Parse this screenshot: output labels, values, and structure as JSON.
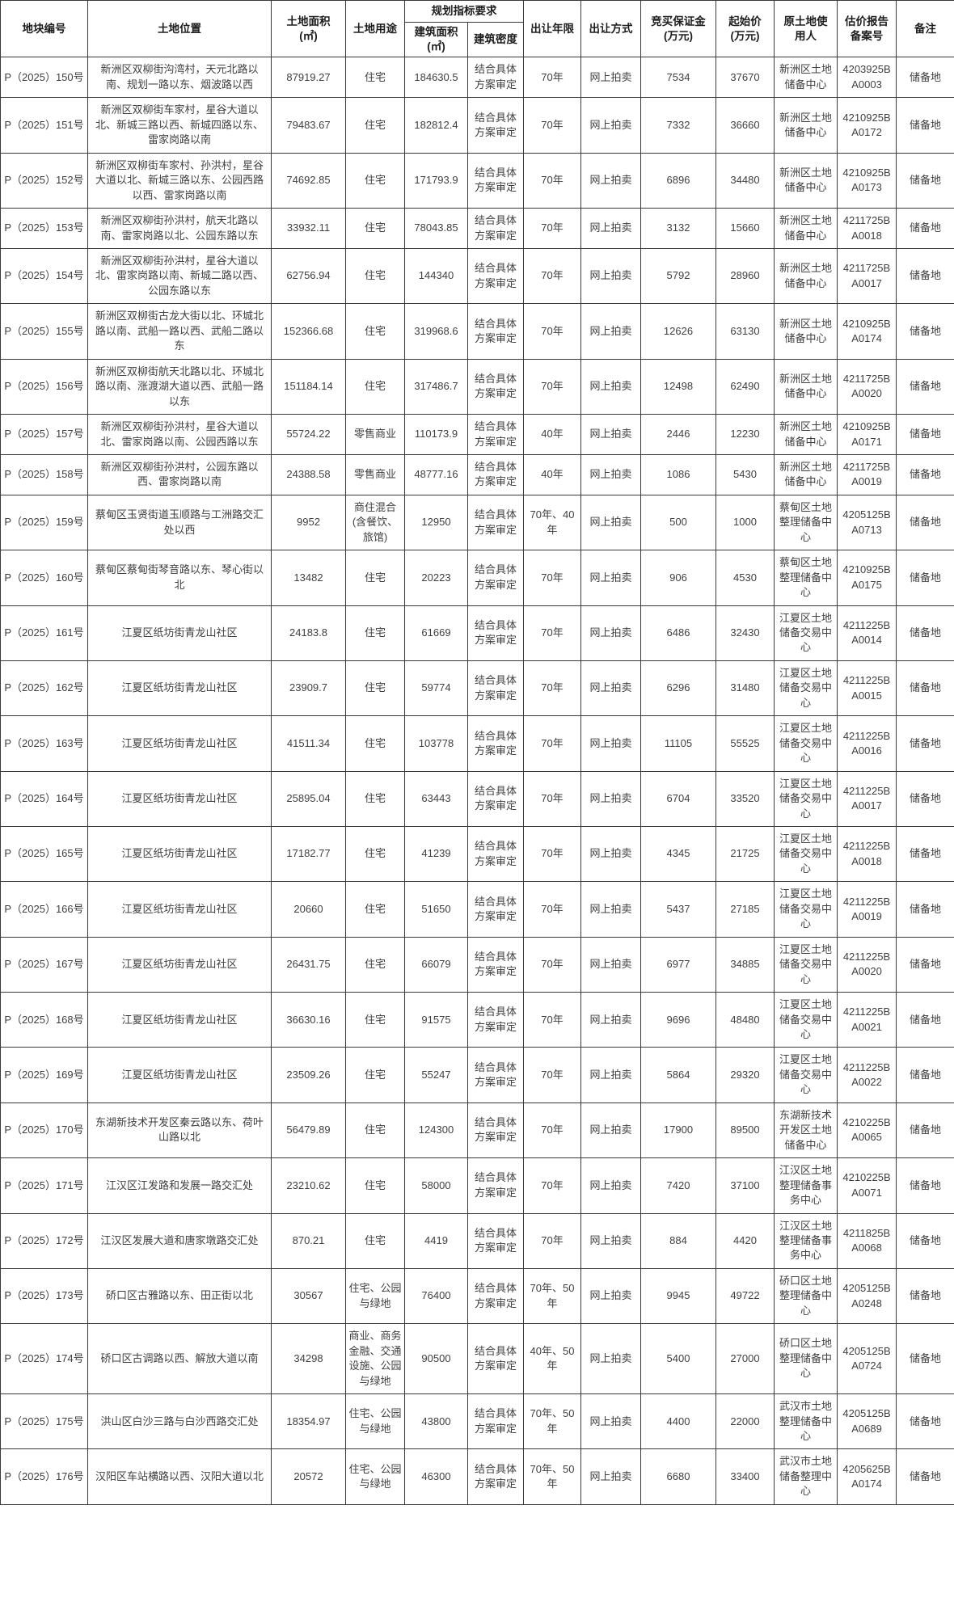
{
  "table": {
    "header": {
      "parcel_id": "地块编号",
      "location": "土地位置",
      "land_area": "土地面积\n(㎡)",
      "land_use": "土地用途",
      "plan_group": "规划指标要求",
      "build_area": "建筑面积\n(㎡)",
      "density": "建筑密度",
      "years": "出让年限",
      "method": "出让方式",
      "deposit": "竞买保证金\n(万元)",
      "start_price": "起始价\n(万元)",
      "original_user": "原土地使\n用人",
      "record_no": "估价报告\n备案号",
      "note": "备注"
    },
    "rows": [
      {
        "id": "P（2025）150号",
        "location": "新洲区双柳街沟湾村，天元北路以南、规划一路以东、烟波路以西",
        "land_area": "87919.27",
        "land_use": "住宅",
        "build_area": "184630.5",
        "density": "结合具体方案审定",
        "years": "70年",
        "method": "网上拍卖",
        "deposit": "7534",
        "start_price": "37670",
        "original_user": "新洲区土地储备中心",
        "record_no": "4203925BA0003",
        "note": "储备地"
      },
      {
        "id": "P（2025）151号",
        "location": "新洲区双柳街车家村，星谷大道以北、新城三路以西、新城四路以东、雷家岗路以南",
        "land_area": "79483.67",
        "land_use": "住宅",
        "build_area": "182812.4",
        "density": "结合具体方案审定",
        "years": "70年",
        "method": "网上拍卖",
        "deposit": "7332",
        "start_price": "36660",
        "original_user": "新洲区土地储备中心",
        "record_no": "4210925BA0172",
        "note": "储备地"
      },
      {
        "id": "P（2025）152号",
        "location": "新洲区双柳街车家村、孙洪村，星谷大道以北、新城三路以东、公园西路以西、雷家岗路以南",
        "land_area": "74692.85",
        "land_use": "住宅",
        "build_area": "171793.9",
        "density": "结合具体方案审定",
        "years": "70年",
        "method": "网上拍卖",
        "deposit": "6896",
        "start_price": "34480",
        "original_user": "新洲区土地储备中心",
        "record_no": "4210925BA0173",
        "note": "储备地"
      },
      {
        "id": "P（2025）153号",
        "location": "新洲区双柳街孙洪村，航天北路以南、雷家岗路以北、公园东路以东",
        "land_area": "33932.11",
        "land_use": "住宅",
        "build_area": "78043.85",
        "density": "结合具体方案审定",
        "years": "70年",
        "method": "网上拍卖",
        "deposit": "3132",
        "start_price": "15660",
        "original_user": "新洲区土地储备中心",
        "record_no": "4211725BA0018",
        "note": "储备地"
      },
      {
        "id": "P（2025）154号",
        "location": "新洲区双柳街孙洪村，星谷大道以北、雷家岗路以南、新城二路以西、公园东路以东",
        "land_area": "62756.94",
        "land_use": "住宅",
        "build_area": "144340",
        "density": "结合具体方案审定",
        "years": "70年",
        "method": "网上拍卖",
        "deposit": "5792",
        "start_price": "28960",
        "original_user": "新洲区土地储备中心",
        "record_no": "4211725BA0017",
        "note": "储备地"
      },
      {
        "id": "P（2025）155号",
        "location": "新洲区双柳街古龙大街以北、环城北路以南、武船一路以西、武船二路以东",
        "land_area": "152366.68",
        "land_use": "住宅",
        "build_area": "319968.6",
        "density": "结合具体方案审定",
        "years": "70年",
        "method": "网上拍卖",
        "deposit": "12626",
        "start_price": "63130",
        "original_user": "新洲区土地储备中心",
        "record_no": "4210925BA0174",
        "note": "储备地"
      },
      {
        "id": "P（2025）156号",
        "location": "新洲区双柳街航天北路以北、环城北路以南、涨渡湖大道以西、武船一路以东",
        "land_area": "151184.14",
        "land_use": "住宅",
        "build_area": "317486.7",
        "density": "结合具体方案审定",
        "years": "70年",
        "method": "网上拍卖",
        "deposit": "12498",
        "start_price": "62490",
        "original_user": "新洲区土地储备中心",
        "record_no": "4211725BA0020",
        "note": "储备地"
      },
      {
        "id": "P（2025）157号",
        "location": "新洲区双柳街孙洪村，星谷大道以北、雷家岗路以南、公园西路以东",
        "land_area": "55724.22",
        "land_use": "零售商业",
        "build_area": "110173.9",
        "density": "结合具体方案审定",
        "years": "40年",
        "method": "网上拍卖",
        "deposit": "2446",
        "start_price": "12230",
        "original_user": "新洲区土地储备中心",
        "record_no": "4210925BA0171",
        "note": "储备地"
      },
      {
        "id": "P（2025）158号",
        "location": "新洲区双柳街孙洪村，公园东路以西、雷家岗路以南",
        "land_area": "24388.58",
        "land_use": "零售商业",
        "build_area": "48777.16",
        "density": "结合具体方案审定",
        "years": "40年",
        "method": "网上拍卖",
        "deposit": "1086",
        "start_price": "5430",
        "original_user": "新洲区土地储备中心",
        "record_no": "4211725BA0019",
        "note": "储备地"
      },
      {
        "id": "P（2025）159号",
        "location": "蔡甸区玉贤街道玉顺路与工洲路交汇处以西",
        "land_area": "9952",
        "land_use": "商住混合(含餐饮、旅馆)",
        "build_area": "12950",
        "density": "结合具体方案审定",
        "years": "70年、40年",
        "method": "网上拍卖",
        "deposit": "500",
        "start_price": "1000",
        "original_user": "蔡甸区土地整理储备中心",
        "record_no": "4205125BA0713",
        "note": "储备地"
      },
      {
        "id": "P（2025）160号",
        "location": "蔡甸区蔡甸街琴音路以东、琴心街以北",
        "land_area": "13482",
        "land_use": "住宅",
        "build_area": "20223",
        "density": "结合具体方案审定",
        "years": "70年",
        "method": "网上拍卖",
        "deposit": "906",
        "start_price": "4530",
        "original_user": "蔡甸区土地整理储备中心",
        "record_no": "4210925BA0175",
        "note": "储备地"
      },
      {
        "id": "P（2025）161号",
        "location": "江夏区纸坊街青龙山社区",
        "land_area": "24183.8",
        "land_use": "住宅",
        "build_area": "61669",
        "density": "结合具体方案审定",
        "years": "70年",
        "method": "网上拍卖",
        "deposit": "6486",
        "start_price": "32430",
        "original_user": "江夏区土地储备交易中心",
        "record_no": "4211225BA0014",
        "note": "储备地"
      },
      {
        "id": "P（2025）162号",
        "location": "江夏区纸坊街青龙山社区",
        "land_area": "23909.7",
        "land_use": "住宅",
        "build_area": "59774",
        "density": "结合具体方案审定",
        "years": "70年",
        "method": "网上拍卖",
        "deposit": "6296",
        "start_price": "31480",
        "original_user": "江夏区土地储备交易中心",
        "record_no": "4211225BA0015",
        "note": "储备地"
      },
      {
        "id": "P（2025）163号",
        "location": "江夏区纸坊街青龙山社区",
        "land_area": "41511.34",
        "land_use": "住宅",
        "build_area": "103778",
        "density": "结合具体方案审定",
        "years": "70年",
        "method": "网上拍卖",
        "deposit": "11105",
        "start_price": "55525",
        "original_user": "江夏区土地储备交易中心",
        "record_no": "4211225BA0016",
        "note": "储备地"
      },
      {
        "id": "P（2025）164号",
        "location": "江夏区纸坊街青龙山社区",
        "land_area": "25895.04",
        "land_use": "住宅",
        "build_area": "63443",
        "density": "结合具体方案审定",
        "years": "70年",
        "method": "网上拍卖",
        "deposit": "6704",
        "start_price": "33520",
        "original_user": "江夏区土地储备交易中心",
        "record_no": "4211225BA0017",
        "note": "储备地"
      },
      {
        "id": "P（2025）165号",
        "location": "江夏区纸坊街青龙山社区",
        "land_area": "17182.77",
        "land_use": "住宅",
        "build_area": "41239",
        "density": "结合具体方案审定",
        "years": "70年",
        "method": "网上拍卖",
        "deposit": "4345",
        "start_price": "21725",
        "original_user": "江夏区土地储备交易中心",
        "record_no": "4211225BA0018",
        "note": "储备地"
      },
      {
        "id": "P（2025）166号",
        "location": "江夏区纸坊街青龙山社区",
        "land_area": "20660",
        "land_use": "住宅",
        "build_area": "51650",
        "density": "结合具体方案审定",
        "years": "70年",
        "method": "网上拍卖",
        "deposit": "5437",
        "start_price": "27185",
        "original_user": "江夏区土地储备交易中心",
        "record_no": "4211225BA0019",
        "note": "储备地"
      },
      {
        "id": "P（2025）167号",
        "location": "江夏区纸坊街青龙山社区",
        "land_area": "26431.75",
        "land_use": "住宅",
        "build_area": "66079",
        "density": "结合具体方案审定",
        "years": "70年",
        "method": "网上拍卖",
        "deposit": "6977",
        "start_price": "34885",
        "original_user": "江夏区土地储备交易中心",
        "record_no": "4211225BA0020",
        "note": "储备地"
      },
      {
        "id": "P（2025）168号",
        "location": "江夏区纸坊街青龙山社区",
        "land_area": "36630.16",
        "land_use": "住宅",
        "build_area": "91575",
        "density": "结合具体方案审定",
        "years": "70年",
        "method": "网上拍卖",
        "deposit": "9696",
        "start_price": "48480",
        "original_user": "江夏区土地储备交易中心",
        "record_no": "4211225BA0021",
        "note": "储备地"
      },
      {
        "id": "P（2025）169号",
        "location": "江夏区纸坊街青龙山社区",
        "land_area": "23509.26",
        "land_use": "住宅",
        "build_area": "55247",
        "density": "结合具体方案审定",
        "years": "70年",
        "method": "网上拍卖",
        "deposit": "5864",
        "start_price": "29320",
        "original_user": "江夏区土地储备交易中心",
        "record_no": "4211225BA0022",
        "note": "储备地"
      },
      {
        "id": "P（2025）170号",
        "location": "东湖新技术开发区秦云路以东、荷叶山路以北",
        "land_area": "56479.89",
        "land_use": "住宅",
        "build_area": "124300",
        "density": "结合具体方案审定",
        "years": "70年",
        "method": "网上拍卖",
        "deposit": "17900",
        "start_price": "89500",
        "original_user": "东湖新技术开发区土地储备中心",
        "record_no": "4210225BA0065",
        "note": "储备地"
      },
      {
        "id": "P（2025）171号",
        "location": "江汉区江发路和发展一路交汇处",
        "land_area": "23210.62",
        "land_use": "住宅",
        "build_area": "58000",
        "density": "结合具体方案审定",
        "years": "70年",
        "method": "网上拍卖",
        "deposit": "7420",
        "start_price": "37100",
        "original_user": "江汉区土地整理储备事务中心",
        "record_no": "4210225BA0071",
        "note": "储备地"
      },
      {
        "id": "P（2025）172号",
        "location": "江汉区发展大道和唐家墩路交汇处",
        "land_area": "870.21",
        "land_use": "住宅",
        "build_area": "4419",
        "density": "结合具体方案审定",
        "years": "70年",
        "method": "网上拍卖",
        "deposit": "884",
        "start_price": "4420",
        "original_user": "江汉区土地整理储备事务中心",
        "record_no": "4211825BA0068",
        "note": "储备地"
      },
      {
        "id": "P（2025）173号",
        "location": "硚口区古雅路以东、田正街以北",
        "land_area": "30567",
        "land_use": "住宅、公园与绿地",
        "build_area": "76400",
        "density": "结合具体方案审定",
        "years": "70年、50年",
        "method": "网上拍卖",
        "deposit": "9945",
        "start_price": "49722",
        "original_user": "硚口区土地整理储备中心",
        "record_no": "4205125BA0248",
        "note": "储备地"
      },
      {
        "id": "P（2025）174号",
        "location": "硚口区古调路以西、解放大道以南",
        "land_area": "34298",
        "land_use": "商业、商务金融、交通设施、公园与绿地",
        "build_area": "90500",
        "density": "结合具体方案审定",
        "years": "40年、50年",
        "method": "网上拍卖",
        "deposit": "5400",
        "start_price": "27000",
        "original_user": "硚口区土地整理储备中心",
        "record_no": "4205125BA0724",
        "note": "储备地"
      },
      {
        "id": "P（2025）175号",
        "location": "洪山区白沙三路与白沙西路交汇处",
        "land_area": "18354.97",
        "land_use": "住宅、公园与绿地",
        "build_area": "43800",
        "density": "结合具体方案审定",
        "years": "70年、50年",
        "method": "网上拍卖",
        "deposit": "4400",
        "start_price": "22000",
        "original_user": "武汉市土地整理储备中心",
        "record_no": "4205125BA0689",
        "note": "储备地"
      },
      {
        "id": "P（2025）176号",
        "location": "汉阳区车站横路以西、汉阳大道以北",
        "land_area": "20572",
        "land_use": "住宅、公园与绿地",
        "build_area": "46300",
        "density": "结合具体方案审定",
        "years": "70年、50年",
        "method": "网上拍卖",
        "deposit": "6680",
        "start_price": "33400",
        "original_user": "武汉市土地储备整理中心",
        "record_no": "4205625BA0174",
        "note": "储备地"
      }
    ]
  }
}
